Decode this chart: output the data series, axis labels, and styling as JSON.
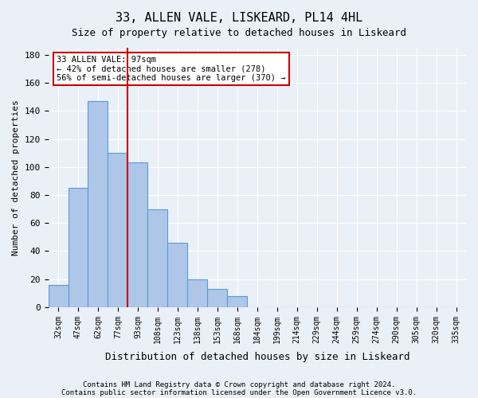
{
  "title1": "33, ALLEN VALE, LISKEARD, PL14 4HL",
  "title2": "Size of property relative to detached houses in Liskeard",
  "xlabel": "Distribution of detached houses by size in Liskeard",
  "ylabel": "Number of detached properties",
  "bin_labels": [
    "32sqm",
    "47sqm",
    "62sqm",
    "77sqm",
    "93sqm",
    "108sqm",
    "123sqm",
    "138sqm",
    "153sqm",
    "168sqm",
    "184sqm",
    "199sqm",
    "214sqm",
    "229sqm",
    "244sqm",
    "259sqm",
    "274sqm",
    "290sqm",
    "305sqm",
    "320sqm",
    "335sqm"
  ],
  "bar_values": [
    16,
    85,
    147,
    110,
    103,
    70,
    46,
    20,
    13,
    8,
    0,
    0,
    0,
    0,
    0,
    0,
    0,
    0,
    0,
    0,
    0
  ],
  "bar_color": "#aec6e8",
  "bar_edge_color": "#5b9bd5",
  "annotation_text": "33 ALLEN VALE: 97sqm\n← 42% of detached houses are smaller (278)\n56% of semi-detached houses are larger (370) →",
  "annotation_box_color": "#ffffff",
  "annotation_box_edge": "#cc0000",
  "line_color": "#cc0000",
  "ylim": [
    0,
    185
  ],
  "yticks": [
    0,
    20,
    40,
    60,
    80,
    100,
    120,
    140,
    160,
    180
  ],
  "footer1": "Contains HM Land Registry data © Crown copyright and database right 2024.",
  "footer2": "Contains public sector information licensed under the Open Government Licence v3.0.",
  "background_color": "#eaf0f8",
  "grid_color": "#ffffff"
}
